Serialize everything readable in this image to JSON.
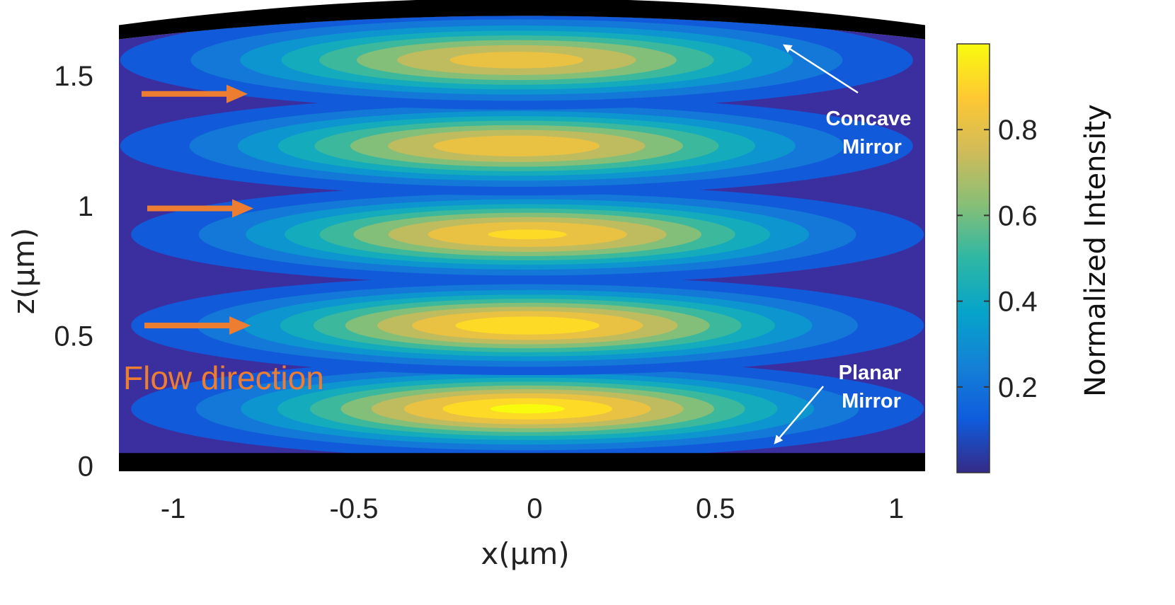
{
  "chart_data": {
    "type": "heatmap",
    "title": "",
    "xlabel": "x(μm)",
    "ylabel": "z(μm)",
    "xlim": [
      -1.15,
      1.08
    ],
    "ylim": [
      -0.02,
      1.75
    ],
    "xticks": [
      -1,
      -0.5,
      0,
      0.5,
      1
    ],
    "xtick_labels": [
      "-1",
      "-0.5",
      "0",
      "0.5",
      "1"
    ],
    "yticks": [
      0,
      0.5,
      1,
      1.5
    ],
    "ytick_labels": [
      "0",
      "0.5",
      "1",
      "1.5"
    ],
    "colormap": "parula",
    "colorbar": {
      "label": "Normalized Intensity",
      "range": [
        0,
        1
      ],
      "ticks": [
        0.2,
        0.4,
        0.6,
        0.8
      ],
      "tick_labels": [
        "0.2",
        "0.4",
        "0.6",
        "0.8"
      ]
    },
    "intensity_lobes": [
      {
        "z": 0.22,
        "x_center": -0.02,
        "peak": 1.0
      },
      {
        "z": 0.54,
        "x_center": -0.02,
        "peak": 0.97
      },
      {
        "z": 0.89,
        "x_center": -0.02,
        "peak": 0.92
      },
      {
        "z": 1.23,
        "x_center": -0.05,
        "peak": 0.88
      },
      {
        "z": 1.56,
        "x_center": -0.05,
        "peak": 0.85
      }
    ],
    "mirrors": {
      "planar": {
        "label_line1": "Planar",
        "label_line2": "Mirror",
        "z_top": 0.05
      },
      "concave": {
        "label_line1": "Concave",
        "label_line2": "Mirror",
        "z_center": 1.73,
        "z_edge": 1.64
      }
    },
    "flow": {
      "label": "Flow direction",
      "arrows_z": [
        1.43,
        0.99,
        0.54
      ],
      "color": "#ED7D31"
    }
  }
}
